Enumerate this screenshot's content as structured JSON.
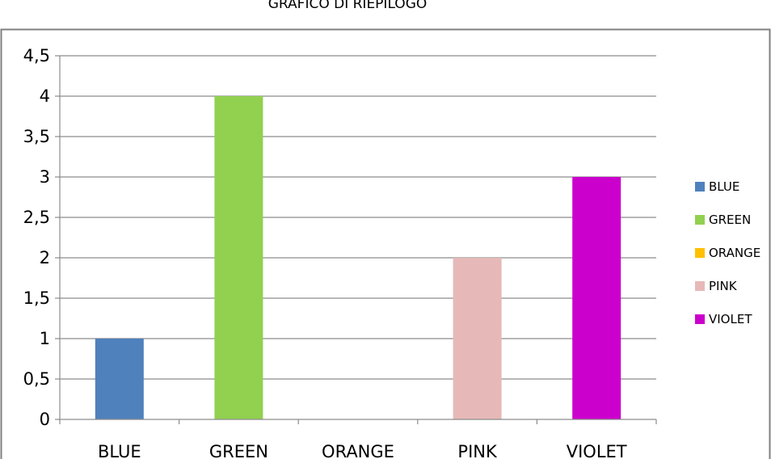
{
  "chart_data": {
    "type": "bar",
    "title": "GRAFICO DI RIEPILOGO",
    "xlabel": "",
    "ylabel": "",
    "categories": [
      "BLUE",
      "GREEN",
      "ORANGE",
      "PINK",
      "VIOLET"
    ],
    "values": [
      1,
      4,
      0,
      2,
      3
    ],
    "colors": [
      "#4f81bd",
      "#92d050",
      "#ffc000",
      "#e6b9b8",
      "#cc00cc"
    ],
    "ylim": [
      0,
      4.5
    ],
    "yticks": [
      "0",
      "0,5",
      "1",
      "1,5",
      "2",
      "2,5",
      "3",
      "3,5",
      "4",
      "4,5"
    ],
    "ytick_values": [
      0,
      0.5,
      1,
      1.5,
      2,
      2.5,
      3,
      3.5,
      4,
      4.5
    ],
    "grid": true,
    "legend_position": "right",
    "legend": [
      "BLUE",
      "GREEN",
      "ORANGE",
      "PINK",
      "VIOLET"
    ]
  }
}
